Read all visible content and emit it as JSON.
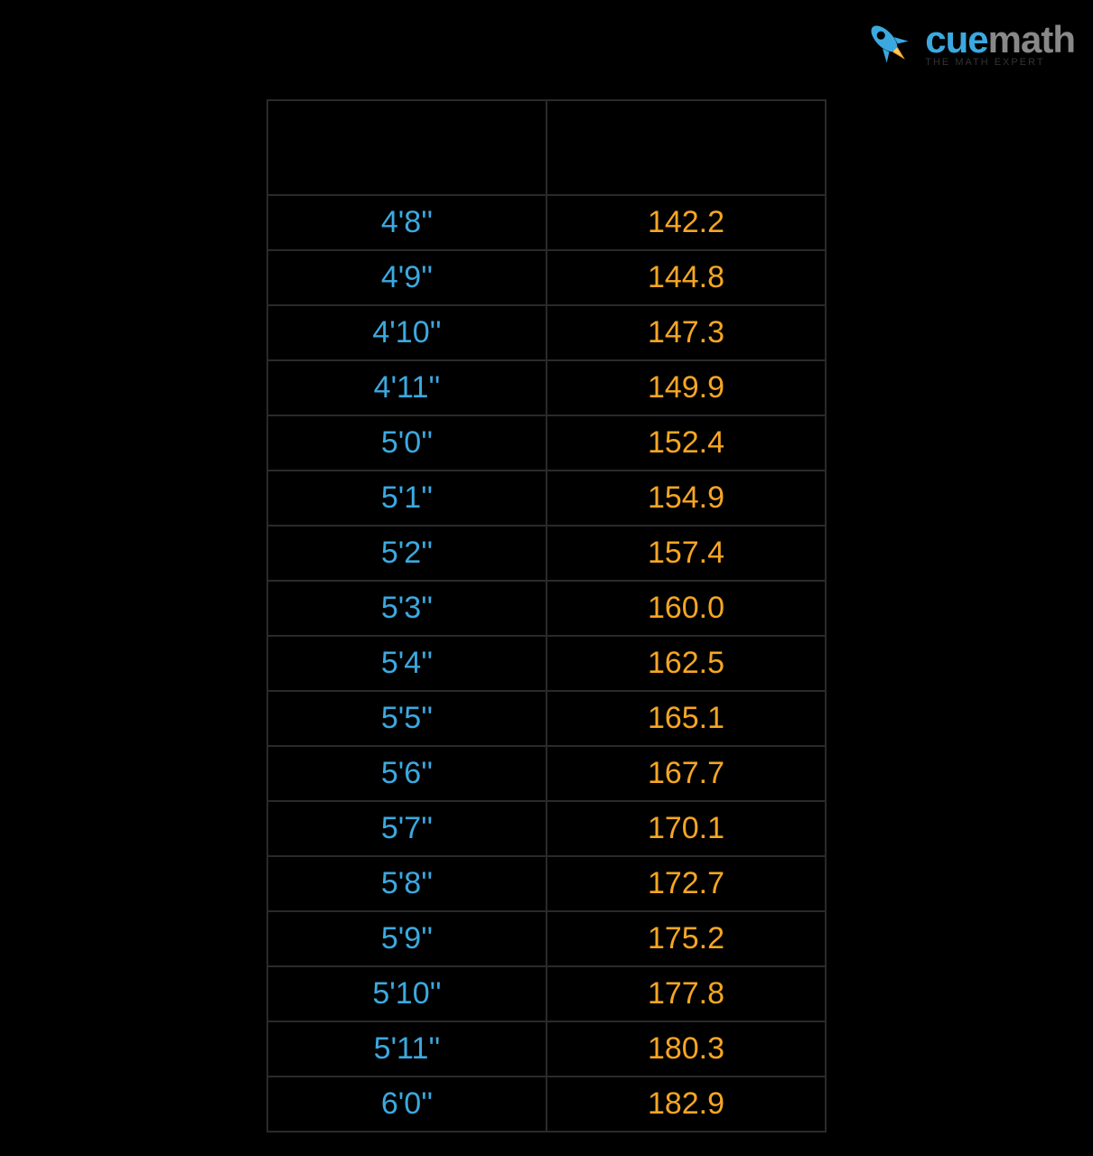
{
  "logo": {
    "brand_part1": "cue",
    "brand_part2": "math",
    "tagline": "THE MATH EXPERT",
    "rocket_body_color": "#3ba9e0",
    "rocket_flame_color": "#f5a623",
    "cue_color": "#3ba9e0",
    "math_color": "#888888"
  },
  "table": {
    "type": "table",
    "background_color": "#000000",
    "border_color": "#2a2a2a",
    "left_column_color": "#3ba9e0",
    "right_column_color": "#f5a623",
    "font_size": 34,
    "header": {
      "left": "",
      "right": ""
    },
    "rows": [
      {
        "left": "4'8''",
        "right": "142.2"
      },
      {
        "left": "4'9''",
        "right": "144.8"
      },
      {
        "left": "4'10''",
        "right": "147.3"
      },
      {
        "left": "4'11''",
        "right": "149.9"
      },
      {
        "left": "5'0''",
        "right": "152.4"
      },
      {
        "left": "5'1''",
        "right": "154.9"
      },
      {
        "left": "5'2''",
        "right": "157.4"
      },
      {
        "left": "5'3''",
        "right": "160.0"
      },
      {
        "left": "5'4''",
        "right": "162.5"
      },
      {
        "left": "5'5''",
        "right": "165.1"
      },
      {
        "left": "5'6''",
        "right": "167.7"
      },
      {
        "left": "5'7''",
        "right": "170.1"
      },
      {
        "left": "5'8''",
        "right": "172.7"
      },
      {
        "left": "5'9''",
        "right": "175.2"
      },
      {
        "left": "5'10''",
        "right": "177.8"
      },
      {
        "left": "5'11''",
        "right": "180.3"
      },
      {
        "left": "6'0''",
        "right": "182.9"
      }
    ]
  }
}
